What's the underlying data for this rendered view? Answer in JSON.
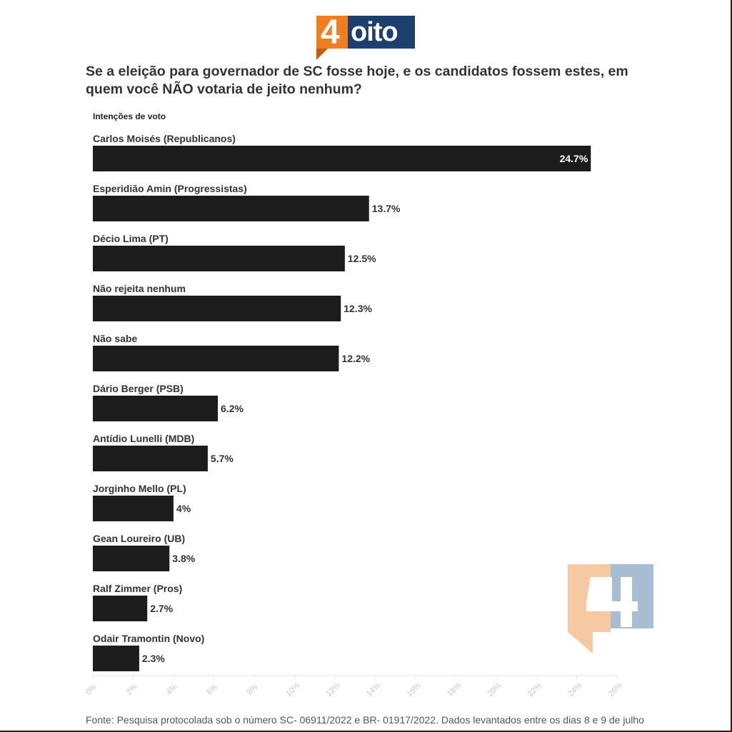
{
  "logo": {
    "four": "4",
    "word": "oito"
  },
  "title": "Se a eleição para governador de SC fosse hoje, e os candidatos fossem estes, em quem você NÃO votaria de jeito nenhum?",
  "subtitle": "Intenções de voto",
  "source": "Fonte: Pesquisa protocolada sob o número SC- 06911/2022 e BR- 01917/2022. Dados levantados entre os dias 8 e 9 de julho",
  "colors": {
    "bar": "#1c1c1c",
    "brand_orange": "#f07d20",
    "brand_blue": "#1d3f6e",
    "watermark_orange": "#f6c9a3",
    "watermark_blue": "#a7bdd2"
  },
  "chart_data": {
    "type": "bar",
    "orientation": "horizontal",
    "title": "Se a eleição para governador de SC fosse hoje, e os candidatos fossem estes, em quem você NÃO votaria de jeito nenhum?",
    "subtitle": "Intenções de voto",
    "categories": [
      "Carlos Moisés (Republicanos)",
      "Esperidião Amin (Progressistas)",
      "Décio Lima (PT)",
      "Não rejeita nenhum",
      "Não sabe",
      "Dário Berger (PSB)",
      "Antídio Lunelli (MDB)",
      "Jorginho Mello (PL)",
      "Gean Loureiro (UB)",
      "Ralf Zimmer (Pros)",
      "Odair Tramontin (Novo)"
    ],
    "values": [
      24.7,
      13.7,
      12.5,
      12.3,
      12.2,
      6.2,
      5.7,
      4,
      3.8,
      2.7,
      2.3
    ],
    "value_labels": [
      "24.7%",
      "13.7%",
      "12.5%",
      "12.3%",
      "12.2%",
      "6.2%",
      "5.7%",
      "4%",
      "3.8%",
      "2.7%",
      "2.3%"
    ],
    "xlim": [
      0,
      26
    ],
    "xticks": [
      "0%",
      "2%",
      "4%",
      "6%",
      "8%",
      "10%",
      "12%",
      "14%",
      "16%",
      "18%",
      "20%",
      "22%",
      "24%",
      "26%"
    ],
    "grid": false,
    "legend": "none"
  }
}
